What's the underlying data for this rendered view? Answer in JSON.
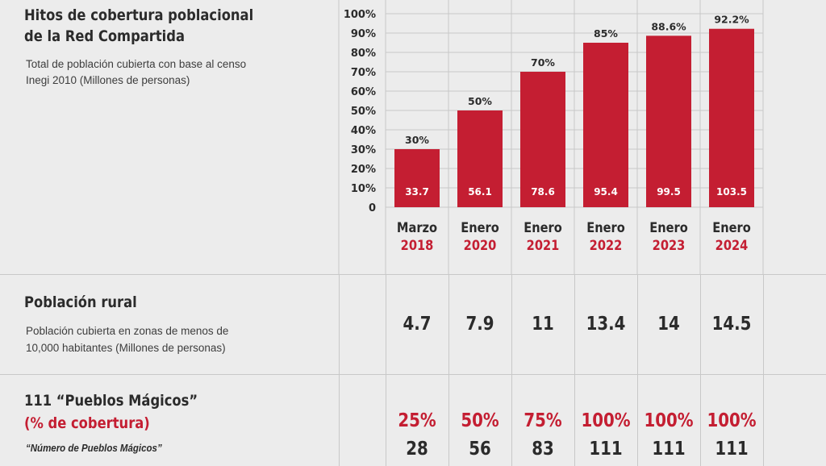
{
  "header": {
    "title_line1": "Hitos de cobertura poblacional",
    "title_line2": "de la Red Compartida",
    "subtitle_line1": "Total de población cubierta con base al censo",
    "subtitle_line2": "Inegi 2010 (Millones de personas)"
  },
  "chart_data": {
    "type": "bar",
    "categories": [
      "Marzo 2018",
      "Enero 2020",
      "Enero 2021",
      "Enero 2022",
      "Enero 2023",
      "Enero 2024"
    ],
    "category_month": [
      "Marzo",
      "Enero",
      "Enero",
      "Enero",
      "Enero",
      "Enero"
    ],
    "category_year": [
      "2018",
      "2020",
      "2021",
      "2022",
      "2023",
      "2024"
    ],
    "values": [
      30,
      50,
      70,
      85,
      88.6,
      92.2
    ],
    "value_labels": [
      "30%",
      "50%",
      "70%",
      "85%",
      "88.6%",
      "92.2%"
    ],
    "inner_labels": [
      "33.7",
      "56.1",
      "78.6",
      "95.4",
      "99.5",
      "103.5"
    ],
    "yticks": [
      "100%",
      "90%",
      "80%",
      "70%",
      "60%",
      "50%",
      "40%",
      "30%",
      "20%",
      "10%",
      "0"
    ],
    "ylim": [
      0,
      100
    ],
    "colors": {
      "bar": "#c41e32",
      "accent_text": "#c41e32",
      "grid": "#c8c8c8"
    }
  },
  "rural": {
    "title": "Población rural",
    "sub_line1": "Población cubierta en zonas de menos de",
    "sub_line2": "10,000 habitantes (Millones de personas)",
    "values": [
      "4.7",
      "7.9",
      "11",
      "13.4",
      "14",
      "14.5"
    ]
  },
  "pueblos": {
    "title": "111 “Pueblos Mágicos”",
    "subtitle": "(% de cobertura)",
    "number_label": "“Número de Pueblos Mágicos”",
    "percents": [
      "25%",
      "50%",
      "75%",
      "100%",
      "100%",
      "100%"
    ],
    "counts": [
      "28",
      "56",
      "83",
      "111",
      "111",
      "111"
    ]
  }
}
